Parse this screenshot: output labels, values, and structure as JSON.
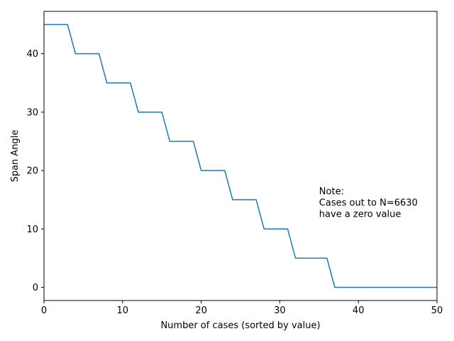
{
  "chart_data": {
    "type": "line",
    "xlabel": "Number of cases (sorted by value)",
    "ylabel": "Span Angle",
    "xlim": [
      0,
      50
    ],
    "ylim": [
      -2.25,
      47.25
    ],
    "grid": false,
    "x_ticks": [
      0,
      10,
      20,
      30,
      40,
      50
    ],
    "y_ticks": [
      0,
      10,
      20,
      30,
      40
    ],
    "series": [
      {
        "color": "#1f77b4",
        "x": [
          0,
          3,
          4,
          7,
          8,
          11,
          12,
          15,
          16,
          19,
          20,
          23,
          24,
          27,
          28,
          31,
          32,
          36,
          37,
          50
        ],
        "y": [
          45,
          45,
          40,
          40,
          35,
          35,
          30,
          30,
          25,
          25,
          20,
          20,
          15,
          15,
          10,
          10,
          5,
          5,
          0,
          0
        ]
      }
    ],
    "annotations": [
      {
        "x": 35,
        "y": 14.5,
        "lines": [
          "Note:",
          "Cases out to N=6630",
          "have a zero value"
        ]
      }
    ]
  }
}
